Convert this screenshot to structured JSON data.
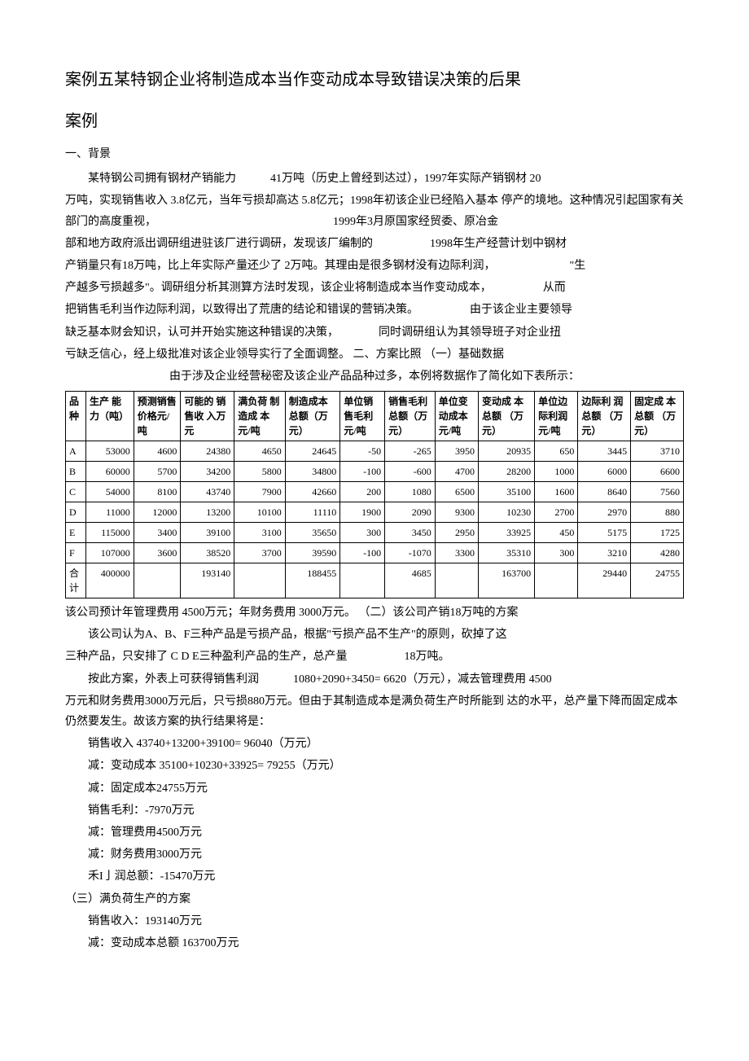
{
  "title": "案例五某特钢企业将制造成本当作变动成本导致错误决策的后果",
  "subtitle": "案例",
  "section1_label": "一、背景",
  "p1": "某特钢公司拥有钢材产销能力　　　41万吨（历史上曾经到达过），1997年实际产销钢材 20",
  "p2": "万吨，实现销售收入 3.8亿元，当年亏损却高达 5.8亿元；1998年初该企业已经陷入基本 停产的境地。这种情况引起国家有关部门的高度重视，　　　　　　　　　　　　　　　　1999年3月原国家经贸委、原冶金",
  "p3": "部和地方政府派出调研组进驻该厂进行调研，发现该厂编制的　　　　　1998年生产经营计划中钢材",
  "p4": "产销量只有18万吨，比上年实际产量还少了 2万吨。其理由是很多钢材没有边际利润，　　　　　　　\"生",
  "p5": "产越多亏损越多\"。调研组分析其测算方法时发现，该企业将制造成本当作变动成本，　　　　　从而",
  "p6": "把销售毛利当作边际利润，以致得出了荒唐的结论和错误的营销决策。　　　　　由于该企业主要领导",
  "p7": "缺乏基本财会知识，认可并开始实施这种错误的决策，　　　　同时调研组认为其领导班子对企业扭",
  "p8": "亏缺乏信心，经上级批准对该企业领导实行了全面调整。  二、方案比照 （一）基础数据",
  "p9": "由于涉及企业经营秘密及该企业产品品种过多，本例将数据作了简化如下表所示：",
  "table": {
    "headers": [
      "品\n\n种",
      "生产 能力（吨）",
      "预测销售价格元/吨",
      "可能的 销售收 入万元",
      "满负荷 制造成 本元/吨",
      "制造成本总额（万元）",
      "单位销 售毛利 元/吨",
      "销售毛利总额（万元）",
      "单位变动成本元/吨",
      "变动成 本总额 （万元）",
      "单位边际利润元/吨",
      "边际利 润总额 （万元）",
      "固定成 本总额 （万元）"
    ],
    "rows": [
      [
        "A",
        "53000",
        "4600",
        "24380",
        "4650",
        "24645",
        "-50",
        "-265",
        "3950",
        "20935",
        "650",
        "3445",
        "3710"
      ],
      [
        "B",
        "60000",
        "5700",
        "34200",
        "5800",
        "34800",
        "-100",
        "-600",
        "4700",
        "28200",
        "1000",
        "6000",
        "6600"
      ],
      [
        "C",
        "54000",
        "8100",
        "43740",
        "7900",
        "42660",
        "200",
        "1080",
        "6500",
        "35100",
        "1600",
        "8640",
        "7560"
      ],
      [
        "D",
        "11000",
        "12000",
        "13200",
        "10100",
        "11110",
        "1900",
        "2090",
        "9300",
        "10230",
        "2700",
        "2970",
        "880"
      ],
      [
        "E",
        "115000",
        "3400",
        "39100",
        "3100",
        "35650",
        "300",
        "3450",
        "2950",
        "33925",
        "450",
        "5175",
        "1725"
      ],
      [
        "F",
        "107000",
        "3600",
        "38520",
        "3700",
        "39590",
        "-100",
        "-1070",
        "3300",
        "35310",
        "300",
        "3210",
        "4280"
      ],
      [
        "合计",
        "400000",
        "",
        "193140",
        "",
        "188455",
        "",
        "4685",
        "",
        "163700",
        "",
        "29440",
        "24755"
      ]
    ]
  },
  "after1": "该公司预计年管理费用 4500万元；年财务费用 3000万元。 （二）该公司产销18万吨的方案",
  "after2": "该公司认为A、B、F三种产品是亏损产品，根据\"亏损产品不生产\"的原则，砍掉了这",
  "after3": "三种产品，只安排了 C D E三种盈利产品的生产，总产量　　　　　18万吨。",
  "after4": "按此方案，外表上可获得销售利润　　　1080+2090+3450= 6620（万元），减去管理费用 4500",
  "after5": "万元和财务费用3000万元后，只亏损880万元。但由于其制造成本是满负荷生产时所能到 达的水平，总产量下降而固定成本仍然要发生。故该方案的执行结果将是：",
  "calc1": "销售收入 43740+13200+39100= 96040（万元）",
  "calc2": "减：变动成本 35100+10230+33925= 79255（万元）",
  "calc3": "减：固定成本24755万元",
  "calc4": "销售毛利：-7970万元",
  "calc5": "减：管理费用4500万元",
  "calc6": "减：财务费用3000万元",
  "calc7": "禾I亅润总额：-15470万元",
  "section3": "（三）满负荷生产的方案",
  "calc8": "销售收入：193140万元",
  "calc9": "减：变动成本总额 163700万元"
}
